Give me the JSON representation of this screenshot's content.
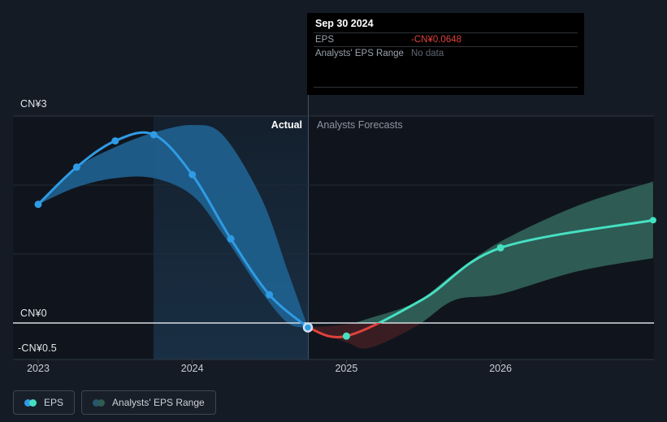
{
  "tooltip": {
    "date": "Sep 30 2024",
    "rows": [
      {
        "label": "EPS",
        "value": "-CN¥0.0648",
        "status": "negative"
      },
      {
        "label": "Analysts' EPS Range",
        "value": "No data",
        "status": "muted"
      }
    ]
  },
  "phases": {
    "actual_label": "Actual",
    "forecast_label": "Analysts Forecasts"
  },
  "legend": [
    {
      "label": "EPS",
      "colors": [
        "#2f9be4",
        "#45e0c2"
      ]
    },
    {
      "label": "Analysts' EPS Range",
      "colors": [
        "#27566e",
        "#2e5b54"
      ]
    }
  ],
  "colors": {
    "actual_line": "#2f9be4",
    "forecast_positive": "#45e0c2",
    "forecast_negative": "#e0413d",
    "actual_band": "#20618f",
    "forecast_band_positive": "#2e5b54",
    "forecast_band_negative": "rgba(224,65,61,0.20)",
    "zero_line": "#d7dce2",
    "background": "#151b24"
  },
  "chart_data": {
    "type": "line",
    "title": "EPS actual and analysts forecast (CN¥)",
    "x_ticks": [
      {
        "label": "2023",
        "year": 2023
      },
      {
        "label": "2024",
        "year": 2024
      },
      {
        "label": "2025",
        "year": 2025
      },
      {
        "label": "2026",
        "year": 2026
      }
    ],
    "y_axis": {
      "labels": [
        {
          "text": "CN¥3",
          "value": 3
        },
        {
          "text": "CN¥0",
          "value": 0
        },
        {
          "text": "-CN¥0.5",
          "value": -0.5
        }
      ],
      "gridline_values": [
        3,
        2,
        1
      ],
      "zero_value": 0,
      "ylim": [
        -0.53,
        3.0
      ]
    },
    "x_range": [
      2023.0,
      2026.99
    ],
    "divider_year": 2024.75,
    "highlight_span": [
      2023.75,
      2024.75
    ],
    "series": [
      {
        "name": "EPS (actual)",
        "points": [
          [
            2023.0,
            1.72
          ],
          [
            2023.25,
            2.26
          ],
          [
            2023.5,
            2.64
          ],
          [
            2023.75,
            2.73
          ],
          [
            2024.0,
            2.15
          ],
          [
            2024.25,
            1.22
          ],
          [
            2024.5,
            0.41
          ],
          [
            2024.75,
            -0.0648
          ]
        ],
        "dots": [
          [
            2023.0,
            1.72
          ],
          [
            2023.25,
            2.26
          ],
          [
            2023.5,
            2.64
          ],
          [
            2023.75,
            2.73
          ],
          [
            2024.0,
            2.15
          ],
          [
            2024.25,
            1.22
          ],
          [
            2024.5,
            0.41
          ]
        ]
      },
      {
        "name": "EPS (analysts forecast)",
        "points": [
          [
            2024.75,
            -0.0648
          ],
          [
            2025.0,
            -0.19
          ],
          [
            2025.5,
            0.35
          ],
          [
            2026.0,
            1.09
          ],
          [
            2026.99,
            1.49
          ]
        ],
        "dots": [
          [
            2025.0,
            -0.19
          ],
          [
            2026.0,
            1.09
          ]
        ],
        "end_cap": [
          2026.99,
          1.49
        ]
      }
    ],
    "hover_dot": [
      2024.75,
      -0.0648
    ],
    "bands": [
      {
        "name": "Analysts' EPS Range (actual period)",
        "points": [
          [
            2023.0,
            1.72,
            1.72
          ],
          [
            2023.25,
            2.25,
            1.97
          ],
          [
            2023.5,
            2.55,
            2.1
          ],
          [
            2023.75,
            2.76,
            2.1
          ],
          [
            2024.0,
            2.87,
            1.85
          ],
          [
            2024.2,
            2.72,
            1.28
          ],
          [
            2024.45,
            1.8,
            0.45
          ],
          [
            2024.62,
            0.75,
            0.0
          ],
          [
            2024.75,
            -0.0648,
            -0.0648
          ]
        ]
      },
      {
        "name": "Analysts' EPS Range (forecast period)",
        "points": [
          [
            2024.75,
            -0.0648,
            -0.0648
          ],
          [
            2025.0,
            -0.02,
            -0.28
          ],
          [
            2025.15,
            0.07,
            -0.36
          ],
          [
            2025.45,
            0.3,
            -0.05
          ],
          [
            2025.7,
            0.72,
            0.33
          ],
          [
            2026.0,
            1.18,
            0.42
          ],
          [
            2026.5,
            1.7,
            0.75
          ],
          [
            2026.99,
            2.05,
            0.94
          ]
        ]
      }
    ]
  }
}
